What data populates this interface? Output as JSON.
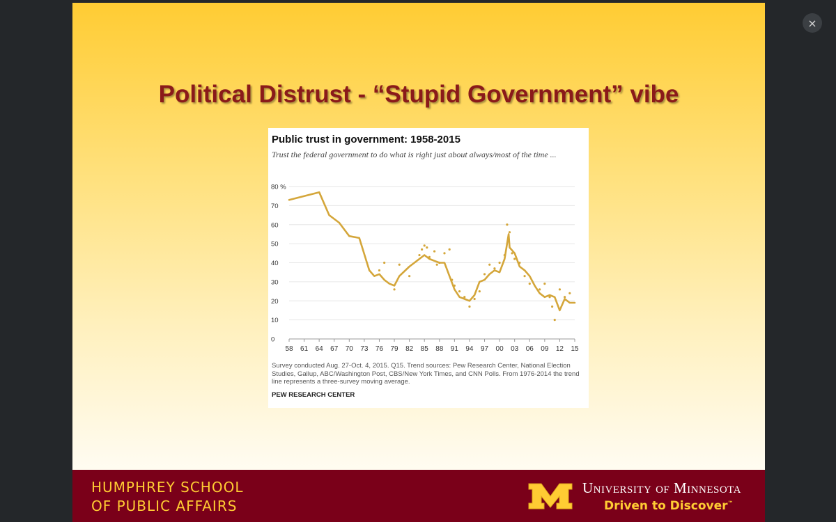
{
  "viewer": {
    "close_label": "×"
  },
  "slide": {
    "title": "Political Distrust - “Stupid Government” vibe"
  },
  "chart": {
    "title": "Public trust in government: 1958-2015",
    "subtitle": "Trust the federal government to do what is right just about always/most of the time ...",
    "note": "Survey conducted Aug. 27-Oct. 4, 2015. Q15. Trend sources: Pew Research Center, National Election Studies, Gallup, ABC/Washington Post, CBS/New York Times, and CNN Polls. From 1976-2014 the trend line represents a three-survey moving average.",
    "source": "PEW RESEARCH CENTER",
    "colors": {
      "line": "#d4a63a",
      "dots": "#d4a63a",
      "grid": "#e6e6e6"
    }
  },
  "chart_data": {
    "type": "line",
    "title": "Public trust in government: 1958-2015",
    "xlabel": "",
    "ylabel": "",
    "ylim": [
      0,
      80
    ],
    "xlim": [
      1958,
      2015
    ],
    "y_ticks": [
      "0",
      "10",
      "20",
      "30",
      "40",
      "50",
      "60",
      "70",
      "80 %"
    ],
    "x_ticks": [
      "58",
      "61",
      "64",
      "67",
      "70",
      "73",
      "76",
      "79",
      "82",
      "85",
      "88",
      "91",
      "94",
      "97",
      "00",
      "03",
      "06",
      "09",
      "12",
      "15"
    ],
    "grid": true,
    "legend": "none",
    "series": [
      {
        "style": "line",
        "x": [
          1958,
          1964,
          1966,
          1968,
          1970,
          1972,
          1974,
          1975,
          1976,
          1977,
          1978,
          1979,
          1980,
          1982,
          1984,
          1985,
          1986,
          1987,
          1988,
          1989,
          1990,
          1991,
          1992,
          1993,
          1994,
          1995,
          1996,
          1997,
          1998,
          1999,
          2000,
          2001,
          2001.8,
          2002,
          2003,
          2004,
          2005,
          2006,
          2007,
          2008,
          2009,
          2010,
          2011,
          2012,
          2013,
          2014,
          2015
        ],
        "y": [
          73,
          77,
          65,
          61,
          54,
          53,
          36,
          33,
          34,
          31,
          29,
          28,
          33,
          38,
          42,
          44,
          42,
          41,
          40,
          40,
          33,
          26,
          22,
          21,
          20,
          23,
          30,
          31,
          34,
          36,
          35,
          42,
          55,
          48,
          45,
          38,
          36,
          33,
          28,
          24,
          22,
          23,
          22,
          15,
          21,
          19,
          19
        ]
      },
      {
        "style": "points",
        "x": [
          1976,
          1977,
          1979,
          1980,
          1982,
          1984,
          1984.5,
          1985,
          1985.5,
          1986,
          1987,
          1987.5,
          1988,
          1989,
          1990,
          1990.5,
          1991,
          1992,
          1993,
          1994,
          1995,
          1996,
          1997,
          1998,
          1999,
          2000,
          2001,
          2001.5,
          2002,
          2002.5,
          2003,
          2004,
          2005,
          2006,
          2008,
          2009,
          2010,
          2010.5,
          2011,
          2012,
          2013,
          2014
        ],
        "y": [
          36,
          40,
          26,
          39,
          33,
          44,
          47,
          49,
          48,
          43,
          46,
          39,
          40,
          45,
          47,
          31,
          28,
          25,
          22,
          17,
          21,
          25,
          34,
          39,
          37,
          40,
          44,
          60,
          56,
          45,
          42,
          40,
          33,
          29,
          26,
          29,
          22,
          17,
          10,
          26,
          22,
          24
        ]
      }
    ]
  },
  "footer": {
    "school_line1": "HUMPHREY SCHOOL",
    "school_line2": "OF PUBLIC AFFAIRS",
    "university": "University of Minnesota",
    "tagline": "Driven to Discover",
    "tagline_mark": "™",
    "colors": {
      "maroon": "#7a0019",
      "gold": "#ffcc33"
    }
  }
}
